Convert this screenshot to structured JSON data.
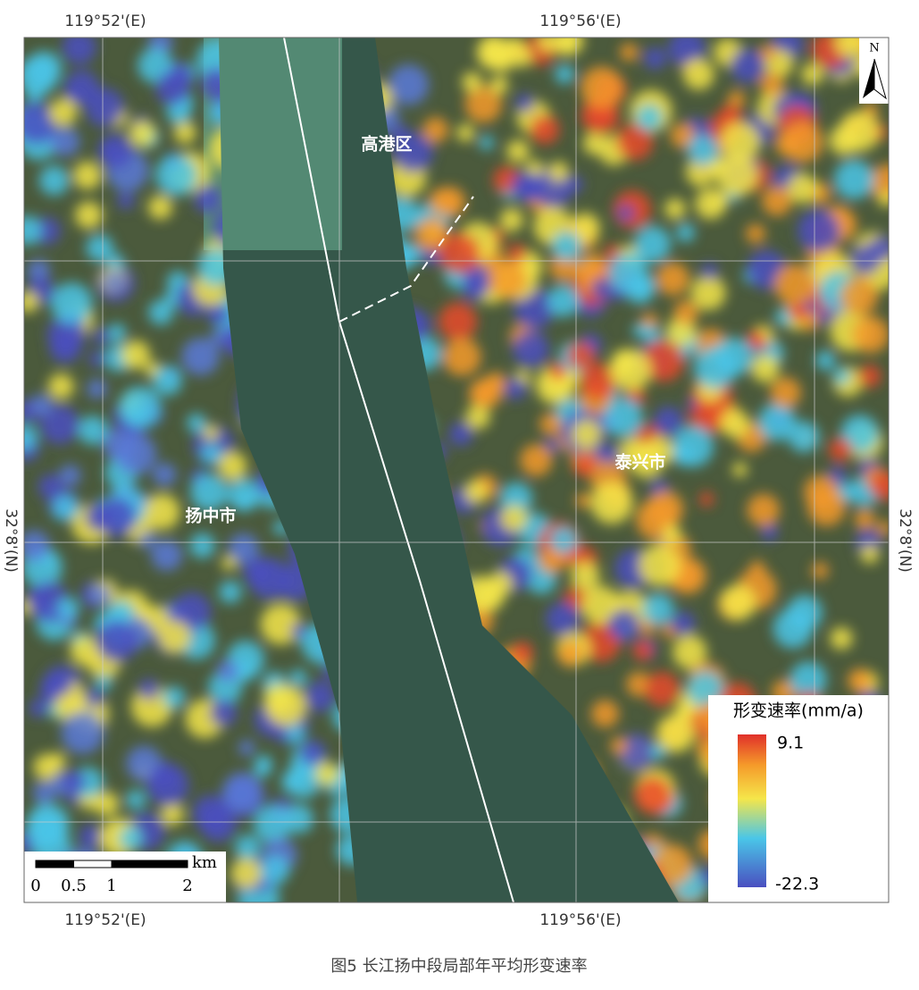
{
  "map": {
    "coord_labels": {
      "top": [
        "119°52'(E)",
        "119°56'(E)"
      ],
      "bottom": [
        "119°52'(E)",
        "119°56'(E)"
      ],
      "left": "32°8'(N)",
      "right": "32°8'(N)"
    },
    "places": [
      "高港区",
      "泰兴市",
      "扬中市"
    ],
    "north": "N",
    "legend": {
      "title": "形变速率(mm/a)",
      "max": 9.1,
      "min": -22.3
    },
    "scale_bar": {
      "ticks": [
        0,
        0.5,
        1,
        2
      ],
      "unit": "km"
    }
  },
  "caption": "图5  长江扬中段局部年平均形变速率"
}
